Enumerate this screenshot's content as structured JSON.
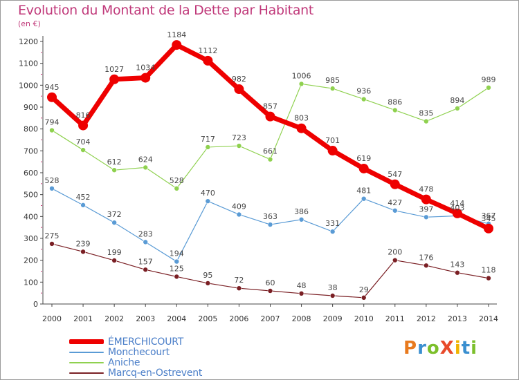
{
  "header": {
    "title": "Evolution du Montant de la Dette par Habitant",
    "subtitle": "(en €)"
  },
  "logo": {
    "text": "ProXiti",
    "letters": [
      {
        "ch": "P",
        "color": "#e87a1e"
      },
      {
        "ch": "r",
        "color": "#3a8fd0"
      },
      {
        "ch": "o",
        "color": "#7cbf2b"
      },
      {
        "ch": "X",
        "color": "#e84a2a"
      },
      {
        "ch": "i",
        "color": "#f0b400"
      },
      {
        "ch": "t",
        "color": "#3a8fd0"
      },
      {
        "ch": "i",
        "color": "#7cbf2b"
      }
    ]
  },
  "chart_data": {
    "type": "line",
    "x": [
      2000,
      2001,
      2002,
      2003,
      2004,
      2005,
      2006,
      2007,
      2008,
      2009,
      2010,
      2011,
      2012,
      2013,
      2014
    ],
    "ylim": [
      0,
      1200
    ],
    "yticks": [
      0,
      100,
      200,
      300,
      400,
      500,
      600,
      700,
      800,
      900,
      1000,
      1100,
      1200
    ],
    "grid": false,
    "legend_position": "bottom-left",
    "series": [
      {
        "name": "Marcq-en-Ostrevent",
        "color": "#7a1f24",
        "width": 1.2,
        "marker": 3.5,
        "values": [
          275,
          239,
          199,
          157,
          125,
          95,
          72,
          60,
          48,
          38,
          29,
          200,
          176,
          143,
          118
        ]
      },
      {
        "name": "Aniche",
        "color": "#8fd14f",
        "width": 1.2,
        "marker": 3.5,
        "values": [
          794,
          704,
          612,
          624,
          528,
          717,
          723,
          661,
          1006,
          985,
          936,
          886,
          835,
          894,
          989
        ]
      },
      {
        "name": "Monchecourt",
        "color": "#5a9bd5",
        "width": 1.2,
        "marker": 3.5,
        "values": [
          528,
          452,
          372,
          283,
          194,
          470,
          409,
          363,
          386,
          331,
          481,
          427,
          397,
          403,
          367
        ]
      },
      {
        "name": "ÉMERCHICOURT",
        "color": "#ee0000",
        "width": 7,
        "marker": 7,
        "values": [
          945,
          816,
          1027,
          1034,
          1184,
          1112,
          982,
          857,
          803,
          701,
          619,
          547,
          478,
          414,
          345
        ]
      }
    ]
  }
}
